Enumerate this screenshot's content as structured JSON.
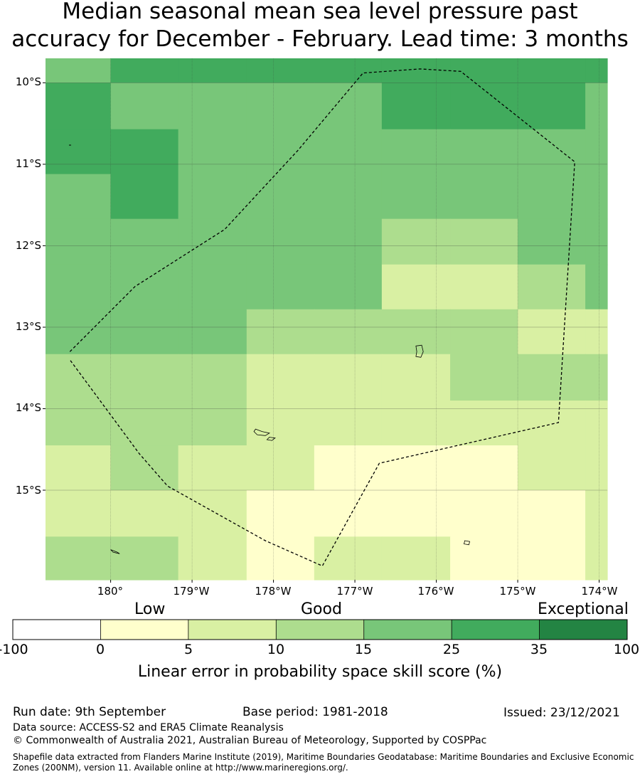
{
  "title": {
    "line1": "Median seasonal mean sea level pressure past",
    "line2": "accuracy for December - February. Lead time: 3 months"
  },
  "map": {
    "lat_labels": [
      "10°S",
      "11°S",
      "12°S",
      "13°S",
      "14°S",
      "15°S"
    ],
    "lon_labels": [
      "180°",
      "179°W",
      "178°W",
      "177°W",
      "176°W",
      "175°W",
      "174°W"
    ],
    "lon_extent": [
      -180.8,
      -173.9
    ],
    "lat_extent": [
      -9.7,
      -16.1
    ],
    "palette": {
      "0_5": "#ffffcc",
      "5_10": "#d9f0a3",
      "10_15": "#addd8e",
      "15_25": "#78c679",
      "25_35": "#41ab5d",
      "35_100": "#238443"
    },
    "skill_grid": {
      "lon_edges": [
        -180.8,
        -180.0,
        -179.17,
        -178.33,
        -177.5,
        -176.67,
        -175.83,
        -175.0,
        -174.17,
        -173.9
      ],
      "lat_edges": [
        -9.7,
        -10.0,
        -10.57,
        -11.12,
        -11.67,
        -12.23,
        -12.78,
        -13.33,
        -13.9,
        -14.45,
        -15.0,
        -15.57,
        -16.1
      ],
      "classes": [
        [
          "15_25",
          "25_35",
          "25_35",
          "25_35",
          "25_35",
          "25_35",
          "25_35",
          "25_35",
          "25_35"
        ],
        [
          "25_35",
          "15_25",
          "15_25",
          "15_25",
          "15_25",
          "25_35",
          "25_35",
          "25_35",
          "15_25"
        ],
        [
          "25_35",
          "25_35",
          "15_25",
          "15_25",
          "15_25",
          "15_25",
          "15_25",
          "15_25",
          "15_25"
        ],
        [
          "15_25",
          "25_35",
          "15_25",
          "15_25",
          "15_25",
          "15_25",
          "15_25",
          "15_25",
          "15_25"
        ],
        [
          "15_25",
          "15_25",
          "15_25",
          "15_25",
          "15_25",
          "10_15",
          "10_15",
          "15_25",
          "15_25"
        ],
        [
          "15_25",
          "15_25",
          "15_25",
          "15_25",
          "15_25",
          "5_10",
          "5_10",
          "10_15",
          "15_25"
        ],
        [
          "15_25",
          "15_25",
          "15_25",
          "10_15",
          "10_15",
          "10_15",
          "10_15",
          "5_10",
          "5_10"
        ],
        [
          "10_15",
          "10_15",
          "10_15",
          "5_10",
          "5_10",
          "5_10",
          "10_15",
          "10_15",
          "10_15"
        ],
        [
          "10_15",
          "10_15",
          "10_15",
          "5_10",
          "5_10",
          "5_10",
          "5_10",
          "5_10",
          "5_10"
        ],
        [
          "5_10",
          "10_15",
          "5_10",
          "5_10",
          "0_5",
          "0_5",
          "0_5",
          "5_10",
          "5_10"
        ],
        [
          "5_10",
          "5_10",
          "5_10",
          "0_5",
          "0_5",
          "0_5",
          "0_5",
          "0_5",
          "5_10"
        ],
        [
          "10_15",
          "10_15",
          "5_10",
          "0_5",
          "5_10",
          "5_10",
          "0_5",
          "0_5",
          "5_10"
        ]
      ]
    },
    "eez_boundary": [
      [
        -180.5,
        -13.3
      ],
      [
        -179.7,
        -12.5
      ],
      [
        -178.6,
        -11.8
      ],
      [
        -177.7,
        -10.83
      ],
      [
        -176.9,
        -9.88
      ],
      [
        -176.2,
        -9.83
      ],
      [
        -175.7,
        -9.86
      ],
      [
        -174.3,
        -10.97
      ],
      [
        -174.5,
        -14.17
      ],
      [
        -176.7,
        -14.67
      ],
      [
        -177.4,
        -15.93
      ],
      [
        -178.1,
        -15.62
      ],
      [
        -179.3,
        -14.95
      ],
      [
        -179.65,
        -14.55
      ],
      [
        -180.5,
        -13.4
      ]
    ],
    "islands": [
      [
        [
          -176.25,
          -13.23
        ],
        [
          -176.18,
          -13.22
        ],
        [
          -176.16,
          -13.3
        ],
        [
          -176.19,
          -13.37
        ],
        [
          -176.25,
          -13.36
        ],
        [
          -176.24,
          -13.3
        ]
      ],
      [
        [
          -178.22,
          -14.25
        ],
        [
          -178.14,
          -14.28
        ],
        [
          -178.05,
          -14.3
        ],
        [
          -178.1,
          -14.33
        ],
        [
          -178.2,
          -14.32
        ],
        [
          -178.24,
          -14.28
        ]
      ],
      [
        [
          -178.05,
          -14.35
        ],
        [
          -177.98,
          -14.36
        ],
        [
          -178.02,
          -14.39
        ],
        [
          -178.08,
          -14.38
        ]
      ],
      [
        [
          -175.65,
          -15.62
        ],
        [
          -175.59,
          -15.63
        ],
        [
          -175.6,
          -15.67
        ],
        [
          -175.66,
          -15.66
        ]
      ],
      [
        [
          -180.0,
          -15.73
        ],
        [
          -179.92,
          -15.76
        ],
        [
          -179.89,
          -15.78
        ],
        [
          -179.97,
          -15.76
        ]
      ]
    ]
  },
  "colorbar": {
    "category_labels": {
      "low": "Low",
      "good": "Good",
      "exceptional": "Exceptional"
    },
    "boundaries": [
      -100,
      0,
      5,
      10,
      15,
      25,
      35,
      100
    ],
    "tick_labels": [
      "-100",
      "0",
      "5",
      "10",
      "15",
      "25",
      "35",
      "100"
    ],
    "colors": [
      "#ffffff",
      "#ffffcc",
      "#d9f0a3",
      "#addd8e",
      "#78c679",
      "#41ab5d",
      "#238443"
    ],
    "label": "Linear error in probability space skill score (%)"
  },
  "footer": {
    "run_date": "Run date: 9th September",
    "base_period": "Base period: 1981-2018",
    "issued": "Issued: 23/12/2021",
    "data_source": "Data source: ACCESS-S2 and ERA5 Climate Reanalysis",
    "copyright": "© Commonwealth of Australia 2021, Australian Bureau of Meteorology, Supported by COSPPac",
    "shapefile_line1": "Shapefile data extracted from Flanders Marine Institute (2019), Maritime Boundaries Geodatabase: Maritime Boundaries and Exclusive Economic",
    "shapefile_line2": "Zones (200NM), version 11. Available online at http://www.marineregions.org/."
  }
}
